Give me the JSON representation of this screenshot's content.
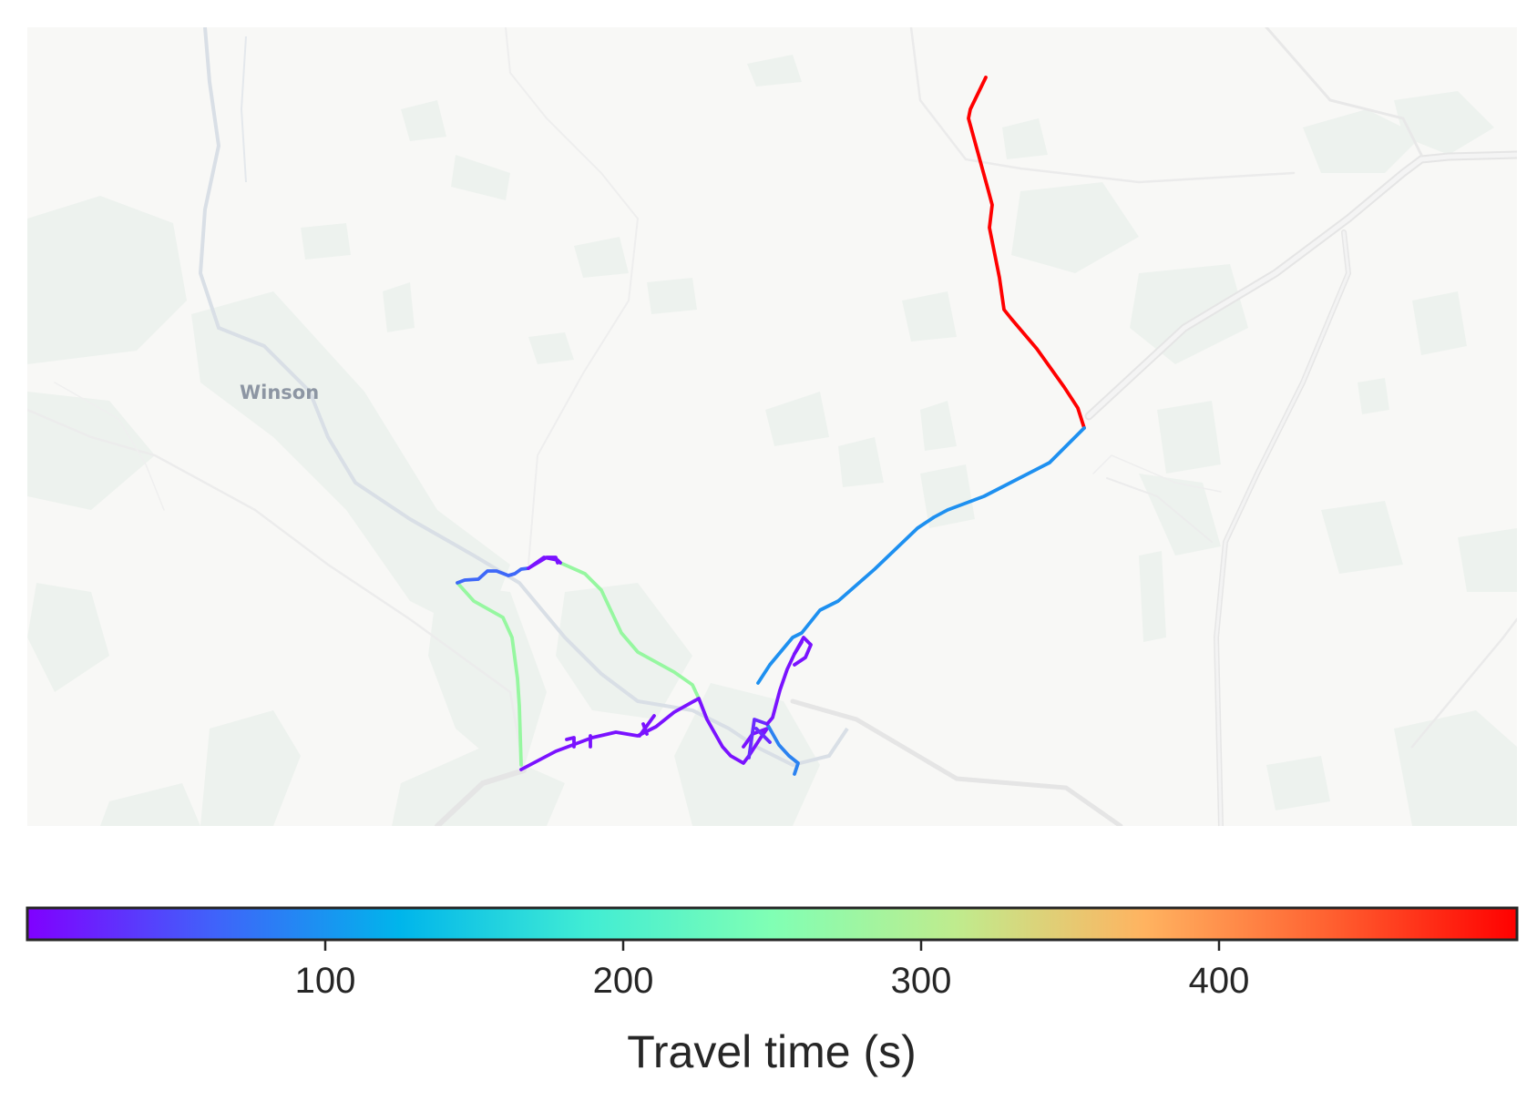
{
  "map": {
    "place_labels": [
      {
        "text": "Winson"
      }
    ],
    "colors": {
      "land": "#f8f8f6",
      "woodland": "#edf2ee",
      "road": "#e3e3e3",
      "river": "#dde2e8"
    }
  },
  "route": {
    "colormap": "rainbow",
    "value_range": [
      0,
      500
    ],
    "segment_travel_times_s": [
      495,
      80,
      275,
      90,
      10,
      10,
      10,
      40,
      10,
      80,
      20,
      5
    ]
  },
  "colorbar": {
    "title": "Travel time (s)",
    "vmin": 0,
    "vmax": 500,
    "ticks": [
      100,
      200,
      300,
      400
    ],
    "tick_labels": [
      "100",
      "200",
      "300",
      "400"
    ],
    "colormap": "rainbow",
    "colors": [
      "#8000ff",
      "#4062fa",
      "#00b5eb",
      "#40ecd4",
      "#80ffb4",
      "#c0eb8d",
      "#ffb360",
      "#ff6030",
      "#ff0000"
    ]
  }
}
